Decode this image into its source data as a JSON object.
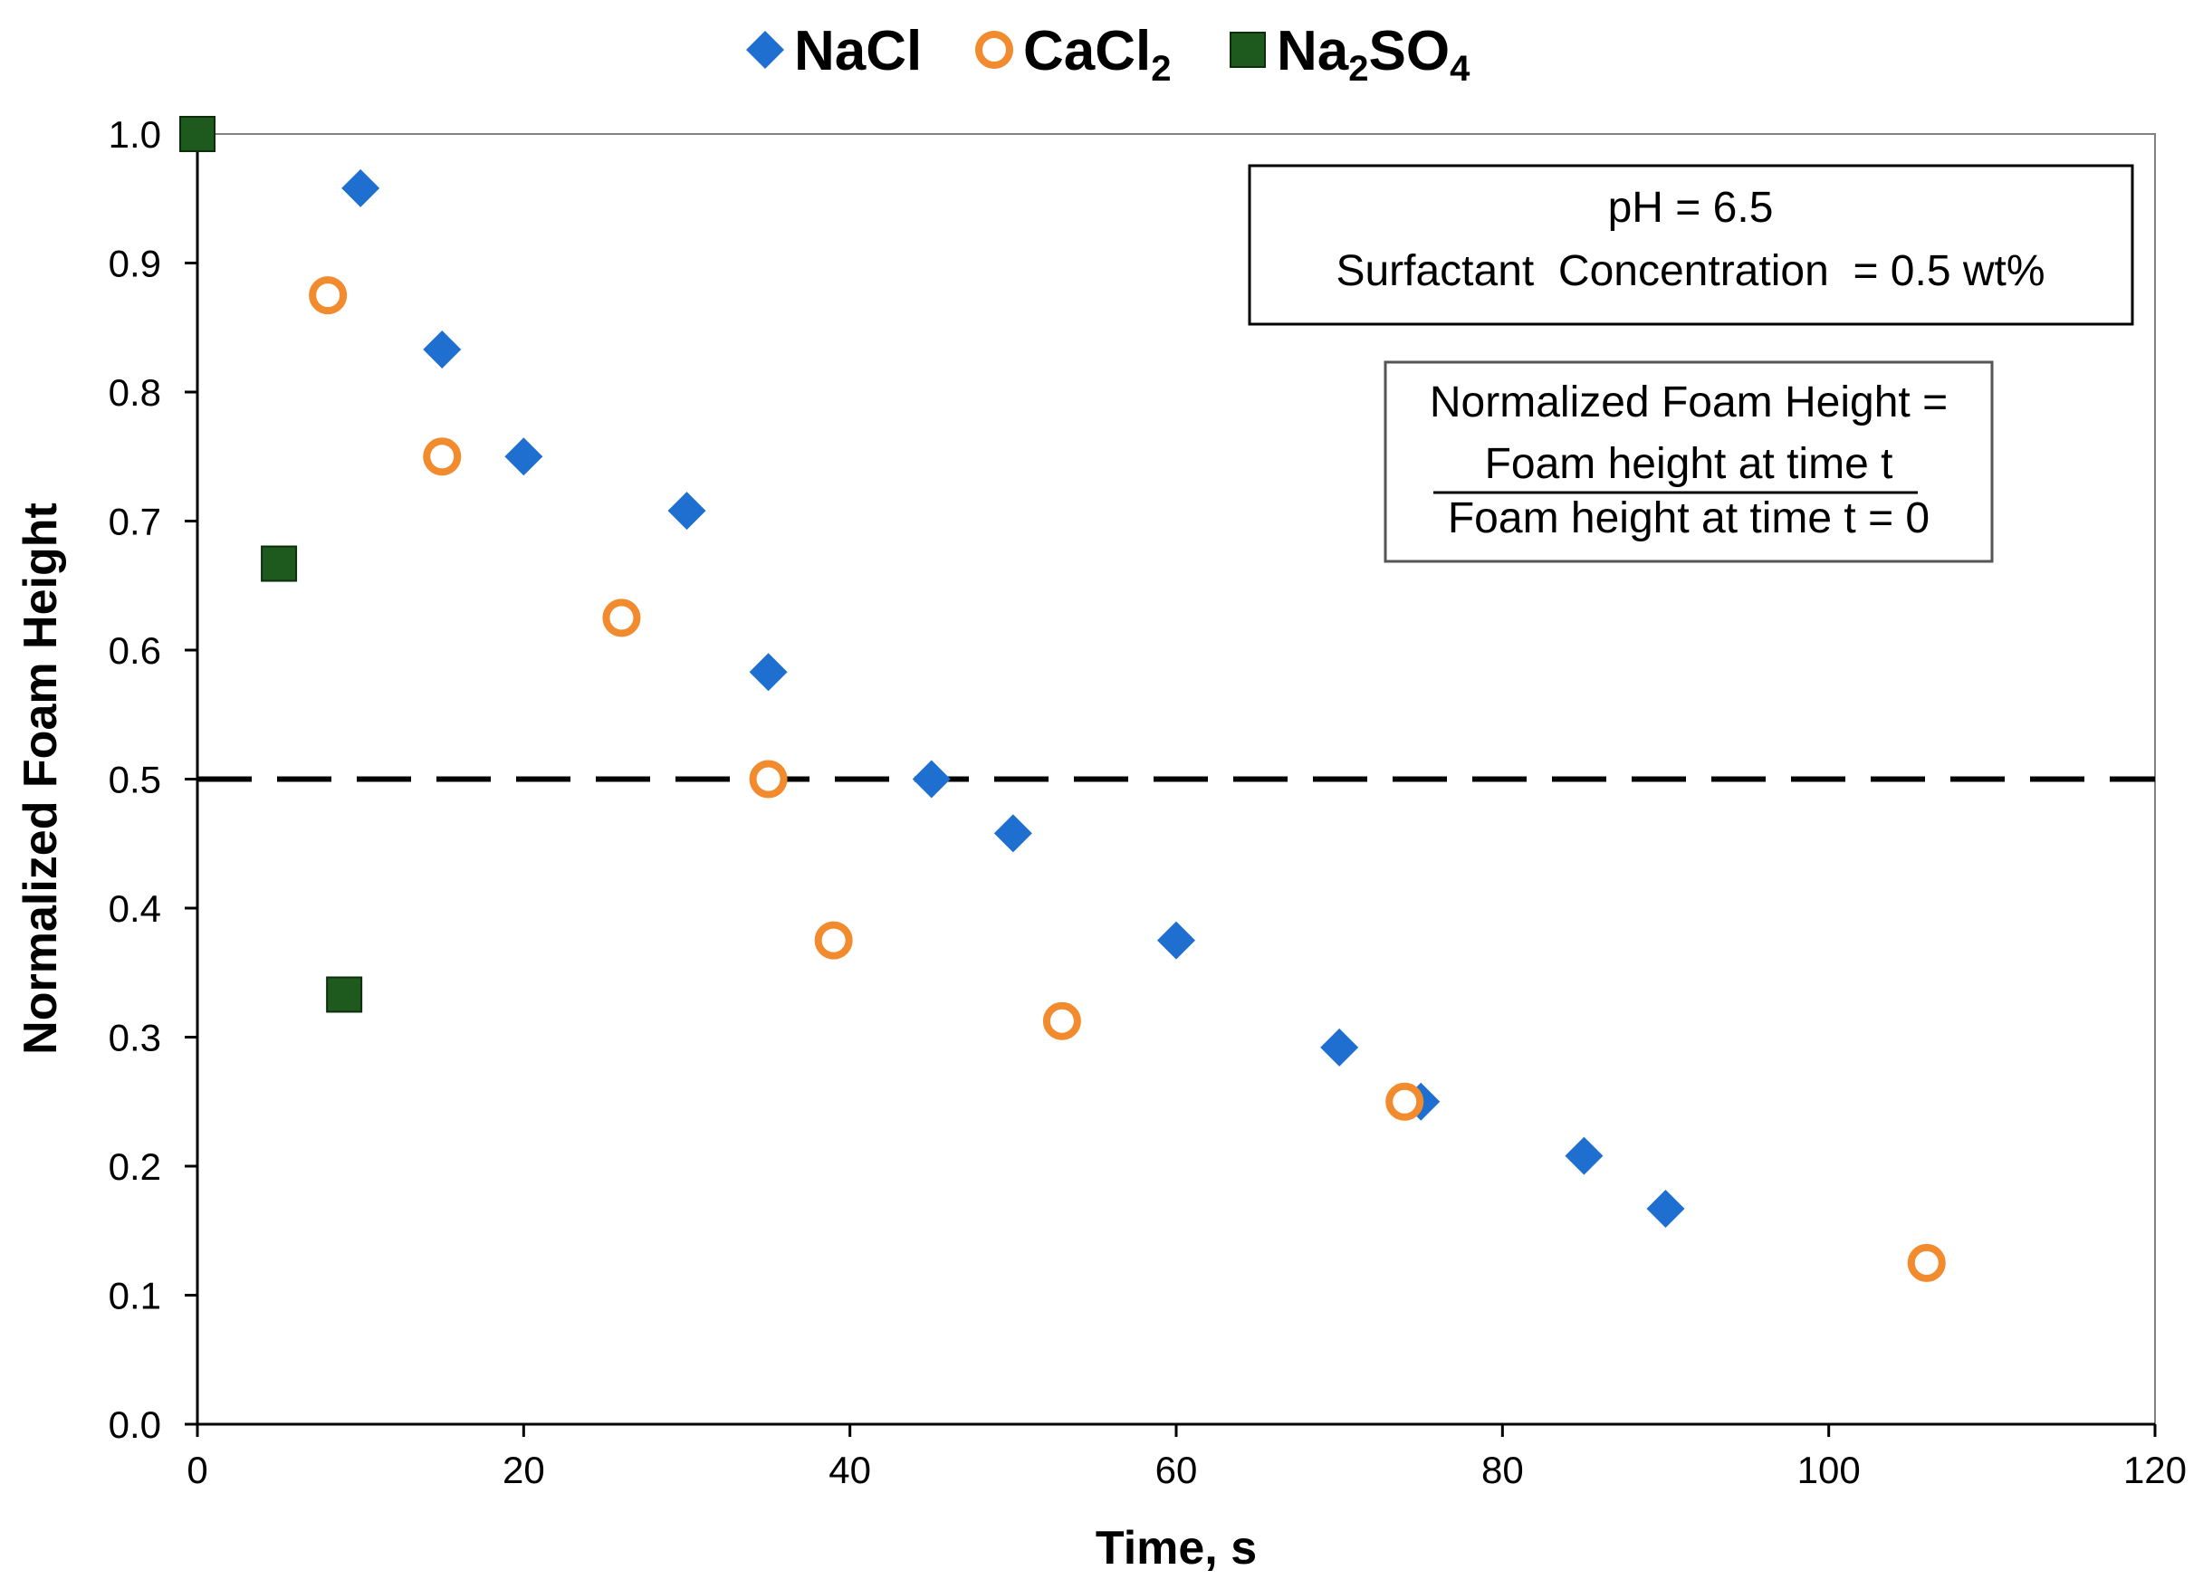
{
  "chart_data": {
    "type": "scatter",
    "title": "",
    "xlabel": "Time, s",
    "ylabel": "Normalized Foam Height",
    "xlim": [
      0,
      120
    ],
    "ylim": [
      0,
      1.0
    ],
    "x_ticks": [
      "0",
      "20",
      "40",
      "60",
      "80",
      "100",
      "120"
    ],
    "y_ticks": [
      "0.0",
      "0.1",
      "0.2",
      "0.3",
      "0.4",
      "0.5",
      "0.6",
      "0.7",
      "0.8",
      "0.9",
      "1.0"
    ],
    "reference_line": {
      "y": 0.5,
      "style": "dashed"
    },
    "legend_position": "top",
    "series": [
      {
        "name": "NaCl",
        "label_main": "NaCl",
        "label_sub": "",
        "label_tail": "",
        "marker": "diamond",
        "color": "#1f6fd1",
        "points": [
          [
            10,
            0.958
          ],
          [
            15,
            0.833
          ],
          [
            20,
            0.75
          ],
          [
            30,
            0.708
          ],
          [
            35,
            0.583
          ],
          [
            45,
            0.5
          ],
          [
            50,
            0.458
          ],
          [
            60,
            0.375
          ],
          [
            70,
            0.292
          ],
          [
            75,
            0.25
          ],
          [
            85,
            0.208
          ],
          [
            90,
            0.167
          ]
        ]
      },
      {
        "name": "CaCl2",
        "label_main": "CaCl",
        "label_sub": "2",
        "label_tail": "",
        "marker": "circle-open",
        "color": "#f28a2e",
        "points": [
          [
            8,
            0.875
          ],
          [
            15,
            0.75
          ],
          [
            26,
            0.625
          ],
          [
            35,
            0.5
          ],
          [
            39,
            0.375
          ],
          [
            53,
            0.3125
          ],
          [
            74,
            0.25
          ],
          [
            106,
            0.125
          ]
        ]
      },
      {
        "name": "Na2SO4",
        "label_main": "Na",
        "label_sub": "2",
        "label_tail": "SO",
        "label_sub2": "4",
        "marker": "square",
        "color": "#1e5a1e",
        "points": [
          [
            0,
            1.0
          ],
          [
            5,
            0.667
          ],
          [
            9,
            0.333
          ]
        ]
      }
    ],
    "annotations": {
      "conditions_line1": "pH = 6.5",
      "conditions_line2": "Surfactant  Concentration  = 0.5 wt%",
      "definition_line1": "Normalized Foam Height =",
      "definition_numerator": "Foam height at time t",
      "definition_denominator": "Foam height at time t = 0"
    }
  }
}
